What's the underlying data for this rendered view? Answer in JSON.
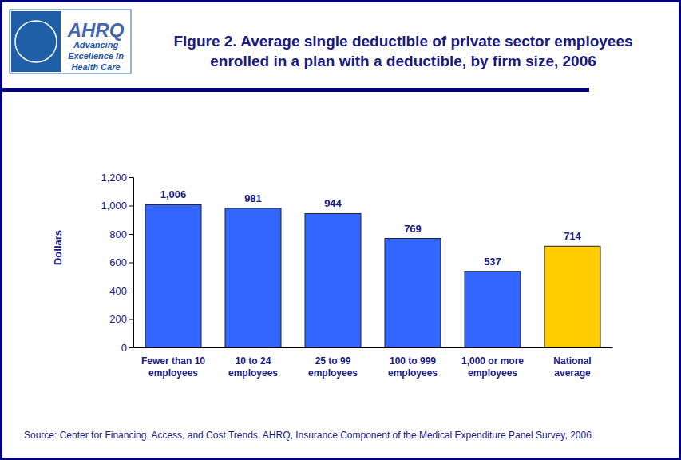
{
  "chart_data": {
    "type": "bar",
    "title": [
      "Figure 2. Average single deductible of private sector employees",
      "enrolled in a plan with a deductible, by firm size, 2006"
    ],
    "y_label": "Dollars",
    "source": "Source: Center for Financing, Access, and Cost Trends, AHRQ, Insurance Component of the Medical Expenditure Panel Survey, 2006",
    "annotations": [
      "AHRQ",
      "Advancing",
      "Excellence in",
      "Health Care"
    ],
    "categories": [
      "Fewer than 10 employees",
      "10 to 24 employees",
      "25 to 99 employees",
      "100 to 999 employees",
      "1,000 or more employees",
      "National average"
    ],
    "values": [
      1006,
      981,
      944,
      769,
      537,
      714
    ],
    "value_labels": [
      "1,006",
      "981",
      "944",
      "769",
      "537",
      "714"
    ],
    "colors": [
      "#3366ff",
      "#3366ff",
      "#3366ff",
      "#3366ff",
      "#3366ff",
      "#ffcc00"
    ],
    "ylim": [
      0,
      1200
    ],
    "yticks": [
      0,
      200,
      400,
      600,
      800,
      {
        "value": 1000,
        "label": "1,000"
      },
      {
        "value": 1200,
        "label": "1,200"
      }
    ],
    "data_labels": true,
    "grid": false
  }
}
